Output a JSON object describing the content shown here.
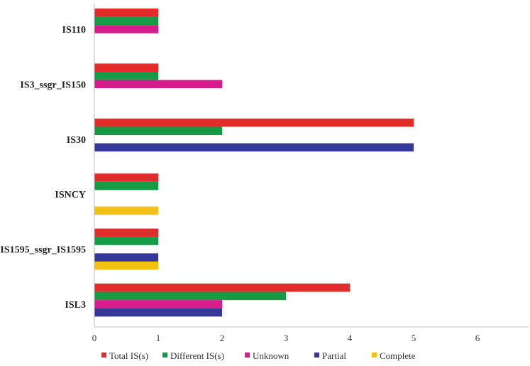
{
  "chart_data": {
    "type": "bar",
    "orientation": "horizontal",
    "categories": [
      "IS110",
      "IS3_ssgr_IS150",
      "IS30",
      "ISNCY",
      "IS1595_ssgr_IS1595",
      "ISL3"
    ],
    "series": [
      {
        "name": "Total IS(s)",
        "color": "#e32b2b",
        "values": [
          1,
          1,
          5,
          1,
          1,
          4
        ]
      },
      {
        "name": "Different IS(s)",
        "color": "#159a46",
        "values": [
          1,
          1,
          2,
          1,
          1,
          3
        ]
      },
      {
        "name": "Unknown",
        "color": "#d81b8c",
        "values": [
          1,
          2,
          0,
          0,
          0,
          2
        ]
      },
      {
        "name": "Partial",
        "color": "#353898",
        "values": [
          0,
          0,
          5,
          0,
          1,
          2
        ]
      },
      {
        "name": "Complete",
        "color": "#f2c213",
        "values": [
          0,
          0,
          0,
          1,
          1,
          0
        ]
      }
    ],
    "xticks": [
      "0",
      "1",
      "2",
      "3",
      "4",
      "5",
      "6"
    ],
    "xlim": [
      0,
      6.8
    ],
    "grid": false,
    "legend_position": "bottom",
    "title": "",
    "xlabel": "",
    "ylabel": ""
  }
}
